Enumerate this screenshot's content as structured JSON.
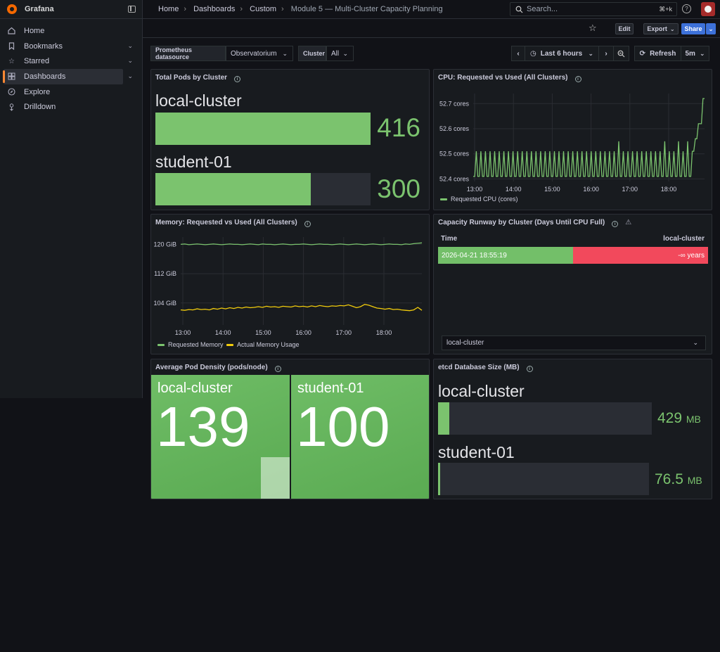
{
  "app": {
    "title": "Grafana"
  },
  "nav": {
    "items": [
      {
        "label": "Home",
        "icon": "home-icon"
      },
      {
        "label": "Bookmarks",
        "icon": "bookmark-icon",
        "expandable": true
      },
      {
        "label": "Starred",
        "icon": "star-icon",
        "expandable": true
      },
      {
        "label": "Dashboards",
        "icon": "dashboards-icon",
        "expandable": true,
        "active": true
      },
      {
        "label": "Explore",
        "icon": "compass-icon"
      },
      {
        "label": "Drilldown",
        "icon": "drilldown-icon"
      }
    ]
  },
  "breadcrumb": [
    "Home",
    "Dashboards",
    "Custom",
    "Module 5 — Multi-Cluster Capacity Planning"
  ],
  "search": {
    "placeholder": "Search...",
    "shortcut": "⌘+k"
  },
  "toolbar": {
    "edit_label": "Edit",
    "export_label": "Export",
    "share_label": "Share"
  },
  "variables": {
    "datasource_label": "Prometheus datasource",
    "datasource_value": "Observatorium",
    "cluster_label": "Cluster",
    "cluster_value": "All"
  },
  "time": {
    "range_label": "Last 6 hours",
    "refresh_label": "Refresh",
    "refresh_interval": "5m"
  },
  "colors": {
    "green": "#7bc36e",
    "yellow": "#f2cc0c",
    "red": "#f2495c",
    "accent": "#ff8833",
    "primary": "#3d71d9"
  },
  "panels": {
    "total_pods": {
      "title": "Total Pods by Cluster",
      "rows": [
        {
          "name": "local-cluster",
          "value": 416,
          "display": "416"
        },
        {
          "name": "student-01",
          "value": 300,
          "display": "300"
        }
      ],
      "max": 416
    },
    "cpu": {
      "title": "CPU: Requested vs Used (All Clusters)",
      "chart_data": {
        "type": "line",
        "x_ticks": [
          "13:00",
          "14:00",
          "15:00",
          "16:00",
          "17:00",
          "18:00"
        ],
        "y_ticks": [
          "52.4 cores",
          "52.5 cores",
          "52.6 cores",
          "52.7 cores"
        ],
        "ylim": [
          52.39,
          52.74
        ],
        "series": [
          {
            "name": "Requested CPU (cores)",
            "color": "#7bc36e",
            "values": [
              52.41,
              52.41,
              52.51,
              52.41,
              52.41,
              52.51,
              52.41,
              52.41,
              52.51,
              52.41,
              52.41,
              52.51,
              52.41,
              52.41,
              52.51,
              52.41,
              52.41,
              52.51,
              52.41,
              52.41,
              52.51,
              52.41,
              52.41,
              52.51,
              52.41,
              52.41,
              52.51,
              52.41,
              52.41,
              52.51,
              52.41,
              52.41,
              52.51,
              52.41,
              52.41,
              52.51,
              52.41,
              52.41,
              52.51,
              52.41,
              52.41,
              52.51,
              52.41,
              52.41,
              52.51,
              52.41,
              52.41,
              52.51,
              52.41,
              52.41,
              52.51,
              52.41,
              52.41,
              52.51,
              52.41,
              52.41,
              52.51,
              52.41,
              52.41,
              52.51,
              52.41,
              52.41,
              52.51,
              52.41,
              52.41,
              52.51,
              52.41,
              52.41,
              52.51,
              52.41,
              52.41,
              52.51,
              52.41,
              52.41,
              52.51,
              52.41,
              52.41,
              52.51,
              52.41,
              52.41,
              52.51,
              52.41,
              52.41,
              52.51,
              52.41,
              52.41,
              52.51,
              52.41,
              52.41,
              52.51,
              52.41,
              52.41,
              52.51,
              52.41,
              52.41,
              52.55,
              52.41,
              52.41,
              52.51,
              52.41,
              52.41,
              52.51,
              52.41,
              52.41,
              52.51,
              52.41,
              52.41,
              52.51,
              52.41,
              52.41,
              52.51,
              52.41,
              52.41,
              52.51,
              52.41,
              52.41,
              52.51,
              52.41,
              52.41,
              52.51,
              52.41,
              52.41,
              52.51,
              52.41,
              52.41,
              52.55,
              52.41,
              52.41,
              52.51,
              52.41,
              52.41,
              52.51,
              52.41,
              52.41,
              52.55,
              52.41,
              52.41,
              52.51,
              52.41,
              52.41,
              52.55,
              52.41,
              52.41,
              52.51,
              52.51,
              52.56,
              52.56,
              52.62,
              52.62,
              52.62,
              52.72,
              52.72
            ]
          }
        ]
      }
    },
    "memory": {
      "title": "Memory: Requested vs Used (All Clusters)",
      "chart_data": {
        "type": "line",
        "x_ticks": [
          "13:00",
          "14:00",
          "15:00",
          "16:00",
          "17:00",
          "18:00"
        ],
        "y_ticks": [
          "104 GiB",
          "112 GiB",
          "120 GiB"
        ],
        "ylim": [
          98,
          122
        ],
        "series": [
          {
            "name": "Requested Memory",
            "color": "#7bc36e",
            "values": [
              120,
              120.1,
              119.9,
              120,
              120.1,
              120,
              119.9,
              120,
              120.1,
              120,
              119.9,
              120,
              120.1,
              120,
              120,
              119.9,
              120,
              120.1,
              120,
              119.9,
              120.1,
              120,
              120,
              119.9,
              120,
              120.1,
              120,
              119.9,
              120,
              120,
              120.1,
              120,
              119.9,
              120,
              120.1,
              120,
              120,
              119.9,
              120,
              120.1,
              120,
              119.9,
              120,
              120.1,
              120,
              119.9,
              120,
              120.1,
              120,
              119.9,
              120,
              120.1,
              120,
              120,
              119.9,
              120.1,
              120,
              120.2,
              120.3,
              120.4
            ]
          },
          {
            "name": "Actual Memory Usage",
            "color": "#f2cc0c",
            "values": [
              102.1,
              102.0,
              102.2,
              102.1,
              102.4,
              102.2,
              102.3,
              102.1,
              102.5,
              102.3,
              102.6,
              102.4,
              102.7,
              102.5,
              102.8,
              102.6,
              102.9,
              102.7,
              102.8,
              103.0,
              102.8,
              103.1,
              102.9,
              103.0,
              102.8,
              103.1,
              103.0,
              102.9,
              103.2,
              103.0,
              103.1,
              102.9,
              103.2,
              103.0,
              103.3,
              103.1,
              103.0,
              103.2,
              103.1,
              103.3,
              103.2,
              103.5,
              103.1,
              102.7,
              103.0,
              103.6,
              103.4,
              103.0,
              102.6,
              102.5,
              102.3,
              102.5,
              102.2,
              102.3,
              102.1,
              102.0,
              101.9,
              102.1,
              102.8,
              102.0
            ]
          }
        ]
      }
    },
    "runway": {
      "title": "Capacity Runway by Cluster (Days Until CPU Full)",
      "columns": [
        "Time",
        "local-cluster"
      ],
      "rows": [
        {
          "time": "2026-04-21 18:55:19",
          "value": "-∞ years"
        }
      ],
      "selector": "local-cluster"
    },
    "density": {
      "title": "Average Pod Density (pods/node)",
      "tiles": [
        {
          "name": "local-cluster",
          "value": "139",
          "spark": 0.34
        },
        {
          "name": "student-01",
          "value": "100",
          "spark": 0.01
        }
      ]
    },
    "etcd": {
      "title": "etcd Database Size (MB)",
      "rows": [
        {
          "name": "local-cluster",
          "value": 429,
          "display": "429",
          "unit": "MB"
        },
        {
          "name": "student-01",
          "value": 76.5,
          "display": "76.5",
          "unit": "MB"
        }
      ],
      "max": 8192
    }
  }
}
